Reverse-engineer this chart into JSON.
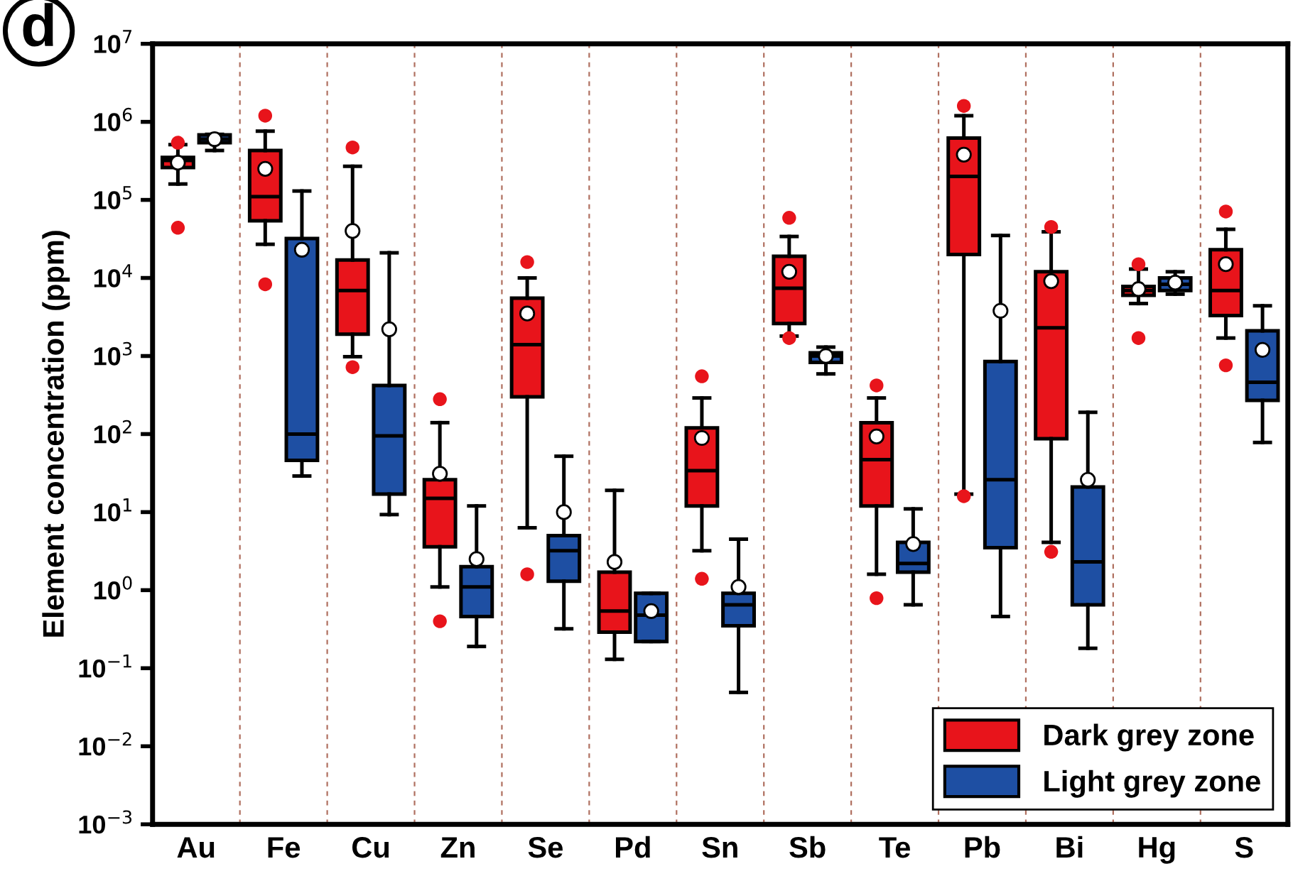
{
  "chart_data": {
    "type": "box",
    "ylabel": "Element concentration (ppm)",
    "annotations": [
      "d"
    ],
    "categories": [
      "Au",
      "Fe",
      "Cu",
      "Zn",
      "Se",
      "Pd",
      "Sn",
      "Sb",
      "Te",
      "Pb",
      "Bi",
      "Hg",
      "S"
    ],
    "log": "y",
    "ylim": [
      0.001,
      10000000
    ],
    "yticks": [
      {
        "value": 0.001,
        "label": "10$^{−3}$"
      },
      {
        "value": 0.01,
        "label": "10$^{−2}$"
      },
      {
        "value": 0.1,
        "label": "10$^{−1}$"
      },
      {
        "value": 1,
        "label": "10$^{0}$"
      },
      {
        "value": 10,
        "label": "10$^{1}$"
      },
      {
        "value": 100,
        "label": "10$^{2}$"
      },
      {
        "value": 1000,
        "label": "10$^{3}$"
      },
      {
        "value": 10000,
        "label": "10$^{4}$"
      },
      {
        "value": 100000,
        "label": "10$^{5}$"
      },
      {
        "value": 1000000,
        "label": "10$^{6}$"
      },
      {
        "value": 10000000,
        "label": "10$^{7}$"
      }
    ],
    "grid": "x",
    "legend": "bottom right",
    "series": [
      {
        "name": "Dark grey zone",
        "color": "#e8141b",
        "boxes": [
          {
            "low": 160000,
            "q1": 260000,
            "median": 320000,
            "q3": 350000,
            "high": 510000,
            "mean": 300000,
            "outliers": [
              540000,
              44000
            ]
          },
          {
            "low": 27000,
            "q1": 54000,
            "median": 110000,
            "q3": 430000,
            "high": 760000,
            "mean": 250000,
            "outliers": [
              1200000,
              8300
            ]
          },
          {
            "low": 980,
            "q1": 1900,
            "median": 6900,
            "q3": 17000,
            "high": 270000,
            "mean": 40000,
            "outliers": [
              470000,
              720
            ]
          },
          {
            "low": 1.1,
            "q1": 3.6,
            "median": 15,
            "q3": 26,
            "high": 140,
            "mean": 31,
            "outliers": [
              280,
              0.4
            ]
          },
          {
            "low": 6.3,
            "q1": 300,
            "median": 1400,
            "q3": 5500,
            "high": 10000,
            "mean": 3500,
            "outliers": [
              16000,
              1.6
            ]
          },
          {
            "low": 0.13,
            "q1": 0.29,
            "median": 0.54,
            "q3": 1.7,
            "high": 19,
            "mean": 2.3
          },
          {
            "low": 3.2,
            "q1": 12,
            "median": 34,
            "q3": 120,
            "high": 290,
            "mean": 89,
            "outliers": [
              550,
              1.4
            ]
          },
          {
            "low": 1800,
            "q1": 2600,
            "median": 7400,
            "q3": 19000,
            "high": 34000,
            "mean": 12000,
            "outliers": [
              59000,
              1700
            ]
          },
          {
            "low": 1.6,
            "q1": 12,
            "median": 47,
            "q3": 140,
            "high": 290,
            "mean": 93,
            "outliers": [
              420,
              0.79
            ]
          },
          {
            "low": 17,
            "q1": 20000,
            "median": 200000,
            "q3": 620000,
            "high": 1200000,
            "mean": 380000,
            "outliers": [
              1600000,
              16
            ]
          },
          {
            "low": 4.1,
            "q1": 87,
            "median": 2300,
            "q3": 12000,
            "high": 39000,
            "mean": 9100,
            "outliers": [
              45000,
              3.1
            ]
          },
          {
            "low": 4700,
            "q1": 6000,
            "median": 6900,
            "q3": 7800,
            "high": 13000,
            "mean": 7200,
            "outliers": [
              15000,
              1700
            ]
          },
          {
            "low": 1700,
            "q1": 3300,
            "median": 6900,
            "q3": 23000,
            "high": 42000,
            "mean": 15000,
            "outliers": [
              71000,
              760
            ]
          }
        ]
      },
      {
        "name": "Light grey zone",
        "color": "#1e4fa3",
        "boxes": [
          {
            "low": 430000,
            "q1": 540000,
            "median": 600000,
            "q3": 680000,
            "high": 690000,
            "mean": 600000
          },
          {
            "low": 29,
            "q1": 46,
            "median": 100,
            "q3": 32000,
            "high": 130000,
            "mean": 23000
          },
          {
            "low": 9.3,
            "q1": 17,
            "median": 95,
            "q3": 420,
            "high": 21000,
            "mean": 2200
          },
          {
            "low": 0.19,
            "q1": 0.46,
            "median": 1.1,
            "q3": 2.0,
            "high": 12,
            "mean": 2.5
          },
          {
            "low": 0.32,
            "q1": 1.3,
            "median": 3.2,
            "q3": 5.0,
            "high": 52,
            "mean": 10
          },
          {
            "low": 0.22,
            "q1": 0.22,
            "median": 0.48,
            "q3": 0.91,
            "high": 0.91,
            "mean": 0.54
          },
          {
            "low": 0.049,
            "q1": 0.35,
            "median": 0.65,
            "q3": 0.91,
            "high": 4.5,
            "mean": 1.1
          },
          {
            "low": 590,
            "q1": 830,
            "median": 1000,
            "q3": 1100,
            "high": 1300,
            "mean": 1000
          },
          {
            "low": 0.65,
            "q1": 1.7,
            "median": 2.2,
            "q3": 4.1,
            "high": 11,
            "mean": 3.9
          },
          {
            "low": 0.46,
            "q1": 3.5,
            "median": 26,
            "q3": 850,
            "high": 35000,
            "mean": 3800
          },
          {
            "low": 0.18,
            "q1": 0.65,
            "median": 2.3,
            "q3": 21,
            "high": 190,
            "mean": 26
          },
          {
            "low": 6200,
            "q1": 6900,
            "median": 8300,
            "q3": 10000,
            "high": 12000,
            "mean": 8700
          },
          {
            "low": 78,
            "q1": 270,
            "median": 460,
            "q3": 2100,
            "high": 4400,
            "mean": 1200
          }
        ]
      }
    ]
  }
}
